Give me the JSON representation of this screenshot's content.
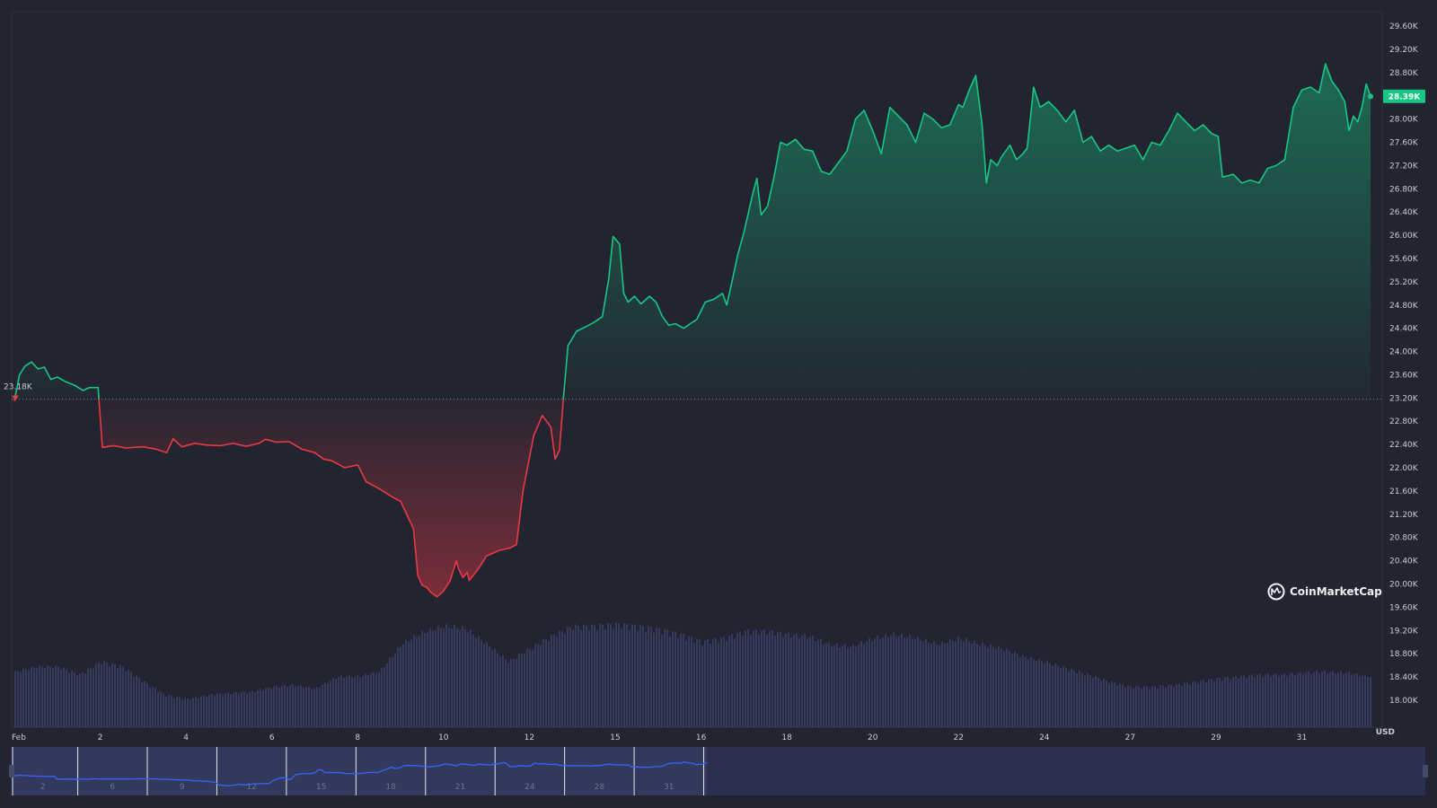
{
  "colors": {
    "background": "#222531",
    "up": "#16c784",
    "down": "#ea3943",
    "volume": "#3a4066",
    "navigator_fill": "#2b3050",
    "navigator_line": "#3861fb",
    "grid_baseline": "#8a8f9e"
  },
  "brand": {
    "name": "CoinMarketCap",
    "icon": "coinmarketcap-logo-icon"
  },
  "chart_data": {
    "type": "area",
    "currency": "USD",
    "y_unit_label": "USD",
    "ylim": [
      17700,
      29900
    ],
    "x_range_days": [
      0,
      31.6
    ],
    "baseline_value": 23180,
    "baseline_label": "23.18K",
    "current_value": 28390,
    "current_label": "28.39K",
    "yticks": [
      {
        "value": 18000,
        "label": "18.00K"
      },
      {
        "value": 18400,
        "label": "18.40K"
      },
      {
        "value": 18800,
        "label": "18.80K"
      },
      {
        "value": 19200,
        "label": "19.20K"
      },
      {
        "value": 19600,
        "label": "19.60K"
      },
      {
        "value": 20000,
        "label": "20.00K"
      },
      {
        "value": 20400,
        "label": "20.40K"
      },
      {
        "value": 20800,
        "label": "20.80K"
      },
      {
        "value": 21200,
        "label": "21.20K"
      },
      {
        "value": 21600,
        "label": "21.60K"
      },
      {
        "value": 22000,
        "label": "22.00K"
      },
      {
        "value": 22400,
        "label": "22.40K"
      },
      {
        "value": 22800,
        "label": "22.80K"
      },
      {
        "value": 23200,
        "label": "23.20K"
      },
      {
        "value": 23600,
        "label": "23.60K"
      },
      {
        "value": 24000,
        "label": "24.00K"
      },
      {
        "value": 24400,
        "label": "24.40K"
      },
      {
        "value": 24800,
        "label": "24.80K"
      },
      {
        "value": 25200,
        "label": "25.20K"
      },
      {
        "value": 25600,
        "label": "25.60K"
      },
      {
        "value": 26000,
        "label": "26.00K"
      },
      {
        "value": 26400,
        "label": "26.40K"
      },
      {
        "value": 26800,
        "label": "26.80K"
      },
      {
        "value": 27200,
        "label": "27.20K"
      },
      {
        "value": 27600,
        "label": "27.60K"
      },
      {
        "value": 28000,
        "label": "28.00K"
      },
      {
        "value": 28800,
        "label": "28.80K"
      },
      {
        "value": 29200,
        "label": "29.20K"
      },
      {
        "value": 29600,
        "label": "29.60K"
      }
    ],
    "xticks": [
      {
        "day": 0.0,
        "label": "Feb"
      },
      {
        "day": 2.0,
        "label": "2"
      },
      {
        "day": 4.0,
        "label": "4"
      },
      {
        "day": 6.0,
        "label": "6"
      },
      {
        "day": 8.0,
        "label": "8"
      },
      {
        "day": 10.0,
        "label": "10"
      },
      {
        "day": 12.0,
        "label": "12"
      },
      {
        "day": 14.0,
        "label": "15"
      },
      {
        "day": 16.0,
        "label": "16"
      },
      {
        "day": 18.0,
        "label": "18"
      },
      {
        "day": 20.0,
        "label": "20"
      },
      {
        "day": 22.0,
        "label": "22"
      },
      {
        "day": 24.0,
        "label": "24"
      },
      {
        "day": 26.0,
        "label": "27"
      },
      {
        "day": 28.0,
        "label": "29"
      },
      {
        "day": 30.0,
        "label": "31"
      }
    ],
    "series": [
      {
        "points": [
          [
            0.0,
            23150
          ],
          [
            0.12,
            23600
          ],
          [
            0.25,
            23750
          ],
          [
            0.4,
            23820
          ],
          [
            0.55,
            23700
          ],
          [
            0.7,
            23730
          ],
          [
            0.85,
            23520
          ],
          [
            1.0,
            23560
          ],
          [
            1.2,
            23480
          ],
          [
            1.4,
            23420
          ],
          [
            1.6,
            23330
          ],
          [
            1.75,
            23380
          ],
          [
            1.9,
            23380
          ],
          [
            1.95,
            23380
          ],
          [
            2.05,
            22350
          ],
          [
            2.3,
            22380
          ],
          [
            2.6,
            22340
          ],
          [
            3.0,
            22360
          ],
          [
            3.3,
            22320
          ],
          [
            3.55,
            22260
          ],
          [
            3.7,
            22500
          ],
          [
            3.9,
            22360
          ],
          [
            4.2,
            22420
          ],
          [
            4.5,
            22390
          ],
          [
            4.8,
            22380
          ],
          [
            5.1,
            22420
          ],
          [
            5.4,
            22370
          ],
          [
            5.7,
            22420
          ],
          [
            5.85,
            22490
          ],
          [
            6.1,
            22440
          ],
          [
            6.4,
            22450
          ],
          [
            6.7,
            22320
          ],
          [
            7.0,
            22260
          ],
          [
            7.2,
            22150
          ],
          [
            7.4,
            22120
          ],
          [
            7.7,
            22000
          ],
          [
            8.0,
            22050
          ],
          [
            8.2,
            21760
          ],
          [
            8.5,
            21640
          ],
          [
            8.8,
            21500
          ],
          [
            9.0,
            21420
          ],
          [
            9.3,
            20950
          ],
          [
            9.4,
            20150
          ],
          [
            9.5,
            19980
          ],
          [
            9.6,
            19950
          ],
          [
            9.7,
            19860
          ],
          [
            9.85,
            19780
          ],
          [
            10.0,
            19880
          ],
          [
            10.15,
            20050
          ],
          [
            10.3,
            20400
          ],
          [
            10.35,
            20260
          ],
          [
            10.45,
            20110
          ],
          [
            10.55,
            20200
          ],
          [
            10.6,
            20060
          ],
          [
            10.8,
            20250
          ],
          [
            11.0,
            20480
          ],
          [
            11.3,
            20580
          ],
          [
            11.55,
            20620
          ],
          [
            11.7,
            20680
          ],
          [
            11.85,
            21600
          ],
          [
            12.1,
            22550
          ],
          [
            12.3,
            22900
          ],
          [
            12.5,
            22700
          ],
          [
            12.6,
            22150
          ],
          [
            12.7,
            22300
          ],
          [
            12.8,
            23250
          ],
          [
            12.9,
            24100
          ],
          [
            13.1,
            24350
          ],
          [
            13.3,
            24420
          ],
          [
            13.5,
            24500
          ],
          [
            13.7,
            24600
          ],
          [
            13.85,
            25250
          ],
          [
            13.95,
            25980
          ],
          [
            14.1,
            25850
          ],
          [
            14.2,
            25000
          ],
          [
            14.3,
            24850
          ],
          [
            14.45,
            24950
          ],
          [
            14.6,
            24820
          ],
          [
            14.8,
            24950
          ],
          [
            14.95,
            24850
          ],
          [
            15.1,
            24600
          ],
          [
            15.25,
            24450
          ],
          [
            15.4,
            24480
          ],
          [
            15.6,
            24400
          ],
          [
            15.75,
            24480
          ],
          [
            15.9,
            24550
          ],
          [
            16.1,
            24850
          ],
          [
            16.3,
            24900
          ],
          [
            16.5,
            25000
          ],
          [
            16.6,
            24800
          ],
          [
            16.75,
            25300
          ],
          [
            16.85,
            25650
          ],
          [
            17.0,
            26050
          ],
          [
            17.2,
            26700
          ],
          [
            17.3,
            26980
          ],
          [
            17.4,
            26350
          ],
          [
            17.55,
            26500
          ],
          [
            17.7,
            27000
          ],
          [
            17.85,
            27600
          ],
          [
            18.0,
            27550
          ],
          [
            18.2,
            27650
          ],
          [
            18.4,
            27480
          ],
          [
            18.6,
            27450
          ],
          [
            18.8,
            27100
          ],
          [
            19.0,
            27050
          ],
          [
            19.2,
            27250
          ],
          [
            19.4,
            27450
          ],
          [
            19.6,
            28000
          ],
          [
            19.8,
            28150
          ],
          [
            20.0,
            27800
          ],
          [
            20.2,
            27400
          ],
          [
            20.4,
            28200
          ],
          [
            20.6,
            28050
          ],
          [
            20.8,
            27900
          ],
          [
            21.0,
            27600
          ],
          [
            21.2,
            28100
          ],
          [
            21.4,
            28000
          ],
          [
            21.6,
            27850
          ],
          [
            21.8,
            27900
          ],
          [
            22.0,
            28250
          ],
          [
            22.1,
            28200
          ],
          [
            22.25,
            28500
          ],
          [
            22.4,
            28750
          ],
          [
            22.55,
            27900
          ],
          [
            22.65,
            26900
          ],
          [
            22.75,
            27300
          ],
          [
            22.9,
            27200
          ],
          [
            23.0,
            27350
          ],
          [
            23.2,
            27550
          ],
          [
            23.35,
            27300
          ],
          [
            23.5,
            27400
          ],
          [
            23.6,
            27500
          ],
          [
            23.75,
            28550
          ],
          [
            23.9,
            28200
          ],
          [
            24.1,
            28300
          ],
          [
            24.3,
            28150
          ],
          [
            24.5,
            27950
          ],
          [
            24.7,
            28150
          ],
          [
            24.9,
            27600
          ],
          [
            25.1,
            27700
          ],
          [
            25.3,
            27450
          ],
          [
            25.5,
            27550
          ],
          [
            25.7,
            27450
          ],
          [
            25.9,
            27500
          ],
          [
            26.1,
            27550
          ],
          [
            26.3,
            27300
          ],
          [
            26.5,
            27600
          ],
          [
            26.7,
            27550
          ],
          [
            26.9,
            27800
          ],
          [
            27.1,
            28100
          ],
          [
            27.3,
            27950
          ],
          [
            27.5,
            27800
          ],
          [
            27.7,
            27900
          ],
          [
            27.9,
            27750
          ],
          [
            28.05,
            27700
          ],
          [
            28.15,
            27000
          ],
          [
            28.4,
            27050
          ],
          [
            28.6,
            26900
          ],
          [
            28.8,
            26950
          ],
          [
            29.0,
            26900
          ],
          [
            29.2,
            27150
          ],
          [
            29.4,
            27200
          ],
          [
            29.6,
            27300
          ],
          [
            29.8,
            28200
          ],
          [
            30.0,
            28500
          ],
          [
            30.2,
            28550
          ],
          [
            30.4,
            28450
          ],
          [
            30.55,
            28950
          ],
          [
            30.7,
            28650
          ],
          [
            30.85,
            28500
          ],
          [
            31.0,
            28300
          ],
          [
            31.1,
            27800
          ],
          [
            31.2,
            28050
          ],
          [
            31.3,
            27950
          ],
          [
            31.4,
            28200
          ],
          [
            31.5,
            28600
          ],
          [
            31.6,
            28390
          ]
        ]
      }
    ],
    "volume": [
      [
        0.0,
        0.55
      ],
      [
        0.5,
        0.6
      ],
      [
        1.0,
        0.6
      ],
      [
        1.5,
        0.52
      ],
      [
        2.0,
        0.65
      ],
      [
        2.5,
        0.6
      ],
      [
        3.0,
        0.45
      ],
      [
        3.5,
        0.32
      ],
      [
        4.0,
        0.28
      ],
      [
        4.5,
        0.32
      ],
      [
        5.0,
        0.34
      ],
      [
        5.5,
        0.35
      ],
      [
        6.0,
        0.4
      ],
      [
        6.5,
        0.42
      ],
      [
        7.0,
        0.38
      ],
      [
        7.5,
        0.5
      ],
      [
        8.0,
        0.5
      ],
      [
        8.5,
        0.55
      ],
      [
        9.0,
        0.82
      ],
      [
        9.5,
        0.94
      ],
      [
        10.0,
        1.0
      ],
      [
        10.5,
        0.98
      ],
      [
        11.0,
        0.82
      ],
      [
        11.5,
        0.65
      ],
      [
        12.0,
        0.78
      ],
      [
        12.5,
        0.9
      ],
      [
        13.0,
        1.0
      ],
      [
        13.5,
        1.0
      ],
      [
        14.0,
        1.02
      ],
      [
        14.5,
        1.0
      ],
      [
        15.0,
        0.97
      ],
      [
        15.5,
        0.92
      ],
      [
        16.0,
        0.85
      ],
      [
        16.5,
        0.88
      ],
      [
        17.0,
        0.95
      ],
      [
        17.5,
        0.95
      ],
      [
        18.0,
        0.92
      ],
      [
        18.5,
        0.9
      ],
      [
        19.0,
        0.82
      ],
      [
        19.5,
        0.8
      ],
      [
        20.0,
        0.88
      ],
      [
        20.5,
        0.92
      ],
      [
        21.0,
        0.88
      ],
      [
        21.5,
        0.82
      ],
      [
        22.0,
        0.88
      ],
      [
        22.5,
        0.82
      ],
      [
        23.0,
        0.78
      ],
      [
        23.5,
        0.7
      ],
      [
        24.0,
        0.65
      ],
      [
        24.5,
        0.58
      ],
      [
        25.0,
        0.52
      ],
      [
        25.5,
        0.45
      ],
      [
        26.0,
        0.4
      ],
      [
        26.5,
        0.4
      ],
      [
        27.0,
        0.42
      ],
      [
        27.5,
        0.45
      ],
      [
        28.0,
        0.48
      ],
      [
        28.5,
        0.5
      ],
      [
        29.0,
        0.52
      ],
      [
        29.5,
        0.52
      ],
      [
        30.0,
        0.54
      ],
      [
        30.5,
        0.55
      ],
      [
        31.0,
        0.54
      ],
      [
        31.6,
        0.5
      ]
    ],
    "navigator": {
      "tick_labels": [
        "2",
        "6",
        "9",
        "12",
        "15",
        "18",
        "21",
        "24",
        "28",
        "31"
      ],
      "selection_end_fraction": 0.492
    }
  }
}
